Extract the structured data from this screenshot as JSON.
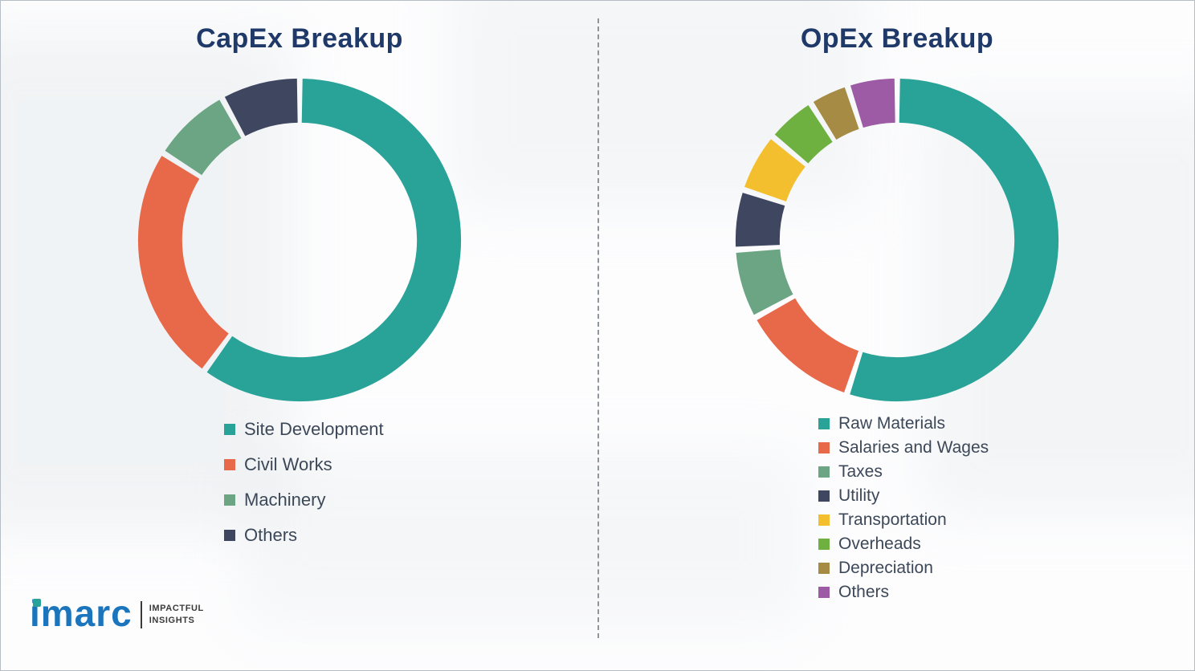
{
  "canvas": {
    "background": "#fdfdfe",
    "border_color": "#b7bdc4"
  },
  "divider": {
    "style": "dashed",
    "color": "#8f959c"
  },
  "titles": {
    "color": "#1f3968"
  },
  "chart_data": [
    {
      "type": "pie",
      "variant": "donut",
      "title": "CapEx Breakup",
      "legend_position": "below-left",
      "categories": [
        "Site Development",
        "Civil Works",
        "Machinery",
        "Others"
      ],
      "values": [
        60,
        24,
        8,
        8
      ],
      "colors": [
        "#29a298",
        "#e8684a",
        "#6ba583",
        "#3f4660"
      ]
    },
    {
      "type": "pie",
      "variant": "donut",
      "title": "OpEx Breakup",
      "legend_position": "below-left",
      "categories": [
        "Raw Materials",
        "Salaries and Wages",
        "Taxes",
        "Utility",
        "Transportation",
        "Overheads",
        "Depreciation",
        "Others"
      ],
      "values": [
        55,
        12,
        7,
        6,
        6,
        5,
        4,
        5
      ],
      "colors": [
        "#29a298",
        "#e8684a",
        "#6ba583",
        "#3f4660",
        "#f3bf2f",
        "#6eb140",
        "#a68b44",
        "#9c5ba4"
      ]
    }
  ],
  "logo": {
    "brand": "imarc",
    "tagline_line1": "IMPACTFUL",
    "tagline_line2": "INSIGHTS",
    "brand_color": "#1b75bc",
    "accent_color": "#29a298"
  }
}
